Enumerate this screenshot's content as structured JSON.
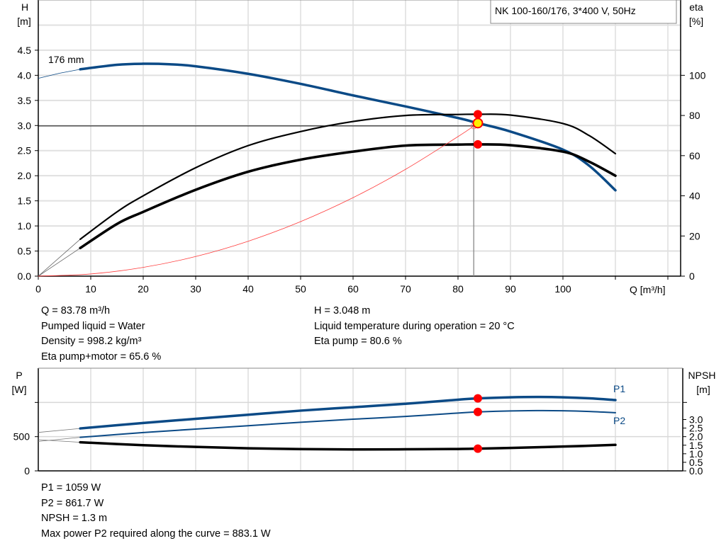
{
  "chart_data": [
    {
      "type": "line",
      "title": "NK 100-160/176, 3*400 V, 50Hz",
      "xlabel": "Q [m³/h]",
      "ylabel": "H\n[m]",
      "ylabel_right": "eta\n[%]",
      "xlim": [
        0,
        120
      ],
      "ylim": [
        0,
        5.5
      ],
      "ylim_right": [
        0,
        137.5
      ],
      "x_ticks": [
        "0",
        "10",
        "20",
        "30",
        "40",
        "50",
        "60",
        "70",
        "80",
        "90",
        "100"
      ],
      "y_ticks": [
        "0.0",
        "0.5",
        "1.0",
        "1.5",
        "2.0",
        "2.5",
        "3.0",
        "3.5",
        "4.0",
        "4.5"
      ],
      "y_right_ticks": [
        "0",
        "20",
        "40",
        "60",
        "80",
        "100"
      ],
      "grid": true,
      "curve_label": "176 mm",
      "series": [
        {
          "key": "H",
          "axis": "left",
          "color": "#0b4a86",
          "x": [
            8,
            15,
            20,
            25,
            30,
            40,
            50,
            60,
            70,
            80,
            83.78,
            90,
            100,
            105,
            110
          ],
          "y": [
            4.12,
            4.21,
            4.23,
            4.22,
            4.18,
            4.03,
            3.83,
            3.6,
            3.38,
            3.15,
            3.048,
            2.88,
            2.52,
            2.2,
            1.71
          ],
          "extension": {
            "x": [
              0,
              4,
              8
            ],
            "y": [
              3.94,
              4.04,
              4.12
            ]
          }
        },
        {
          "key": "eta_pump",
          "axis": "right",
          "color": "#000000",
          "x": [
            8,
            15,
            20,
            30,
            40,
            50,
            60,
            70,
            80,
            83.78,
            90,
            100,
            105,
            110
          ],
          "y": [
            18.4,
            32,
            40,
            54,
            65,
            72,
            77,
            80,
            80.5,
            80.6,
            80.2,
            76,
            70,
            61
          ],
          "extension": {
            "x": [
              0,
              8
            ],
            "y": [
              0,
              18.4
            ]
          }
        },
        {
          "key": "eta_pump_motor",
          "axis": "right",
          "color": "#000000",
          "x": [
            8,
            15,
            20,
            30,
            40,
            50,
            60,
            70,
            80,
            83.78,
            90,
            100,
            105,
            110
          ],
          "y": [
            14,
            26,
            32,
            43,
            52,
            58,
            62,
            65,
            65.5,
            65.6,
            65.2,
            62,
            57,
            50
          ],
          "extension": {
            "x": [
              0,
              8
            ],
            "y": [
              0,
              14
            ]
          }
        },
        {
          "key": "system",
          "axis": "left",
          "color": "#ff3b3b",
          "x": [
            0,
            10,
            20,
            30,
            40,
            50,
            60,
            70,
            80,
            83
          ],
          "y": [
            0,
            0.043,
            0.174,
            0.391,
            0.695,
            1.086,
            1.563,
            2.128,
            2.78,
            2.99
          ]
        }
      ],
      "duty_point": {
        "x": 83.78,
        "y": 3.048
      },
      "eta_points": [
        {
          "x": 83.78,
          "y": 80.6
        },
        {
          "x": 83.78,
          "y": 65.6
        }
      ]
    },
    {
      "type": "line",
      "ylabel": "P\n[W]",
      "ylabel_right": "NPSH\n[m]",
      "xlim": [
        0,
        120
      ],
      "ylim": [
        0,
        1500
      ],
      "ylim_right": [
        0,
        6
      ],
      "y_ticks": [
        "0",
        "500"
      ],
      "y_right_ticks": [
        "0.0",
        "0.5",
        "1.0",
        "1.5",
        "2.0",
        "2.5",
        "3.0"
      ],
      "grid": true,
      "series": [
        {
          "name": "P1",
          "axis": "left",
          "color": "#0b4a86",
          "x": [
            8,
            20,
            30,
            40,
            50,
            60,
            70,
            80,
            83.78,
            90,
            95,
            100,
            105,
            110
          ],
          "y": [
            620,
            700,
            760,
            820,
            880,
            930,
            980,
            1040,
            1059,
            1075,
            1080,
            1075,
            1060,
            1035
          ],
          "extension": {
            "x": [
              0,
              8
            ],
            "y": [
              562,
              620
            ]
          }
        },
        {
          "name": "P2",
          "axis": "left",
          "color": "#0b4a86",
          "x": [
            8,
            20,
            30,
            40,
            50,
            60,
            70,
            80,
            83.78,
            90,
            95,
            100,
            105,
            110
          ],
          "y": [
            490,
            560,
            610,
            660,
            710,
            755,
            795,
            845,
            861.7,
            875,
            880,
            878,
            868,
            850
          ],
          "extension": {
            "x": [
              0,
              8
            ],
            "y": [
              430,
              490
            ]
          }
        },
        {
          "key": "NPSH",
          "axis": "right",
          "color": "#000000",
          "x": [
            8,
            20,
            30,
            40,
            50,
            60,
            70,
            80,
            83.78,
            90,
            100,
            110
          ],
          "y": [
            1.67,
            1.5,
            1.4,
            1.32,
            1.27,
            1.25,
            1.26,
            1.28,
            1.3,
            1.34,
            1.42,
            1.52
          ],
          "extension": {
            "x": [
              0,
              8
            ],
            "y": [
              1.82,
              1.67
            ]
          }
        }
      ],
      "op_points": [
        {
          "axis": "left",
          "x": 83.78,
          "y": 1059
        },
        {
          "axis": "left",
          "x": 83.78,
          "y": 861.7
        },
        {
          "axis": "right",
          "x": 83.78,
          "y": 1.3
        }
      ]
    }
  ],
  "info_upper_left": [
    "Q = 83.78 m³/h",
    "Pumped liquid = Water",
    "Density = 998.2 kg/m³",
    "Eta pump+motor = 65.6 %"
  ],
  "info_upper_right": [
    "H = 3.048 m",
    "Liquid temperature during operation = 20 °C",
    "Eta pump = 80.6 %"
  ],
  "info_lower": [
    "P1 = 1059 W",
    "P2 = 861.7 W",
    "NPSH = 1.3 m",
    "Max power P2 required along the curve = 883.1 W"
  ]
}
